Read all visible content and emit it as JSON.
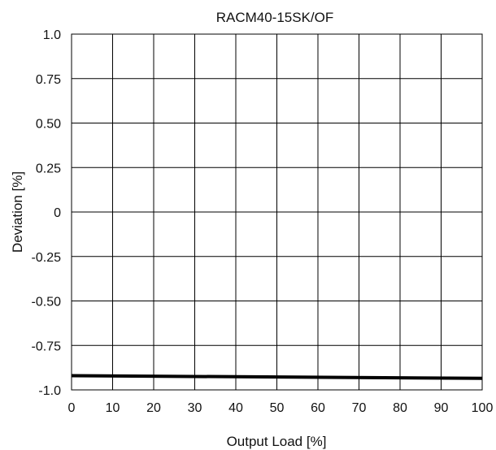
{
  "chart_data": {
    "type": "line",
    "title": "RACM40-15SK/OF",
    "xlabel": "Output Load [%]",
    "ylabel": "Deviation [%]",
    "xlim": [
      0,
      100
    ],
    "ylim": [
      -1.0,
      1.0
    ],
    "x_ticks": [
      "0",
      "10",
      "20",
      "30",
      "40",
      "50",
      "60",
      "70",
      "80",
      "90",
      "100"
    ],
    "y_ticks": [
      "1.0",
      "0.75",
      "0.50",
      "0.25",
      "0",
      "-0.25",
      "-0.50",
      "-0.75",
      "-1.0"
    ],
    "grid": true,
    "series": [
      {
        "color": "#000000",
        "x": [
          0,
          100
        ],
        "y": [
          -0.92,
          -0.935
        ]
      }
    ]
  }
}
